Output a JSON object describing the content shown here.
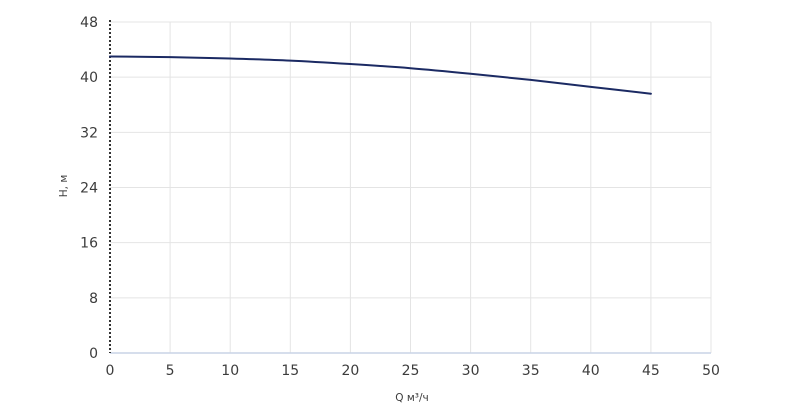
{
  "chart_data": {
    "type": "line",
    "title": "",
    "xlabel": "Q м³/ч",
    "ylabel": "H, м",
    "xlim": [
      0,
      50
    ],
    "ylim": [
      0,
      48
    ],
    "xticks": [
      0,
      5,
      10,
      15,
      20,
      25,
      30,
      35,
      40,
      45,
      50
    ],
    "yticks": [
      0,
      8,
      16,
      24,
      32,
      40,
      48
    ],
    "grid": true,
    "series": [
      {
        "color": "#1b2a63",
        "x": [
          0,
          5,
          10,
          15,
          20,
          25,
          30,
          35,
          40,
          45
        ],
        "y": [
          43.0,
          42.9,
          42.7,
          42.4,
          41.9,
          41.3,
          40.5,
          39.6,
          38.6,
          37.6
        ]
      }
    ],
    "colors": {
      "grid": "#e4e4e4",
      "x_axis": "#c9d3e6",
      "y_axis": "#333333",
      "text": "#3c3c3c"
    }
  }
}
